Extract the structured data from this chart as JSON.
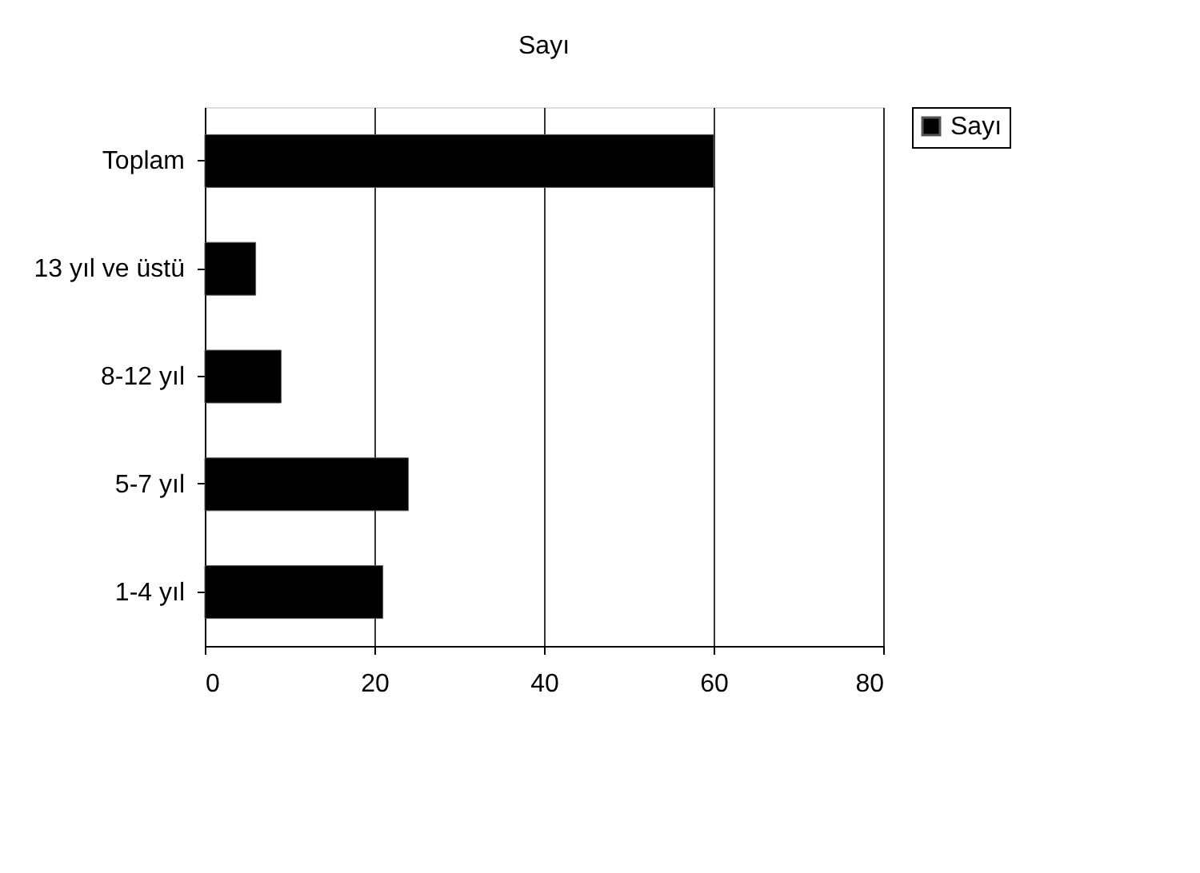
{
  "chart_data": {
    "type": "bar",
    "orientation": "horizontal",
    "title": "Sayı",
    "categories": [
      "Toplam",
      "13 yıl ve üstü",
      "8-12 yıl",
      "5-7 yıl",
      "1-4 yıl"
    ],
    "series": [
      {
        "name": "Sayı",
        "color": "#000000",
        "values": [
          60,
          6,
          9,
          24,
          21
        ]
      }
    ],
    "xlim": [
      0,
      80
    ],
    "xticks": [
      0,
      20,
      40,
      60,
      80
    ],
    "grid": "x",
    "legend": "right"
  }
}
